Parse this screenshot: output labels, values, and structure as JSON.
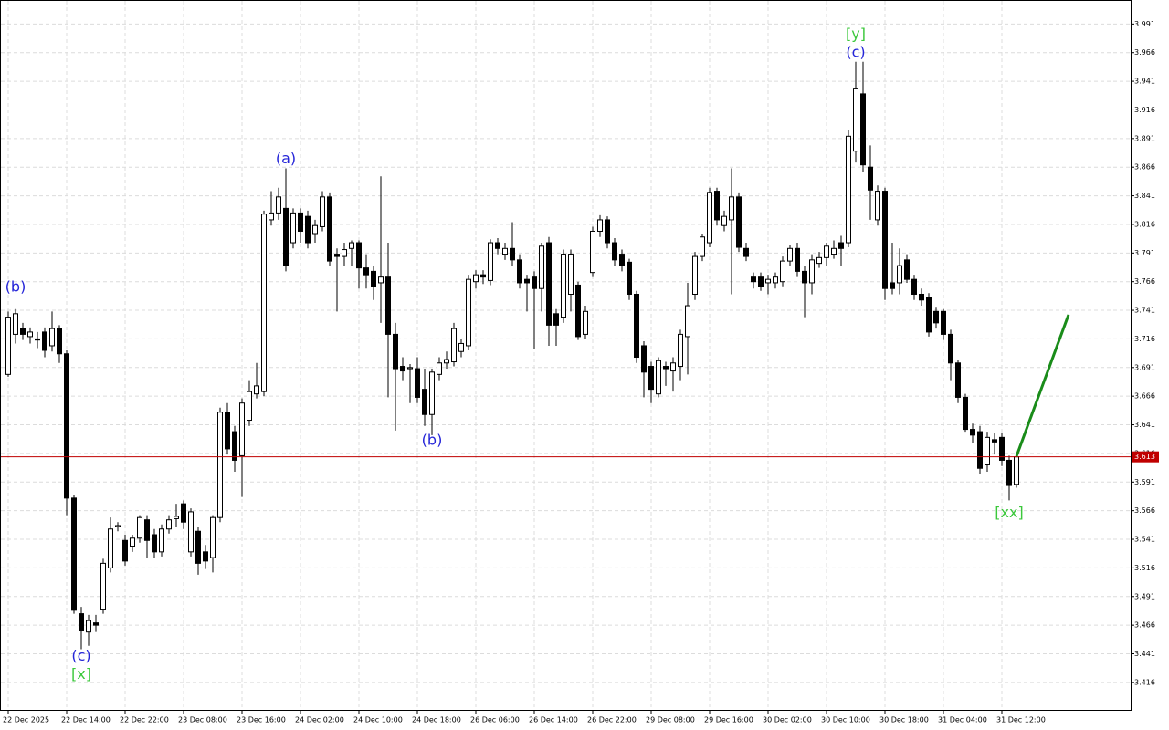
{
  "chart_data": {
    "type": "candlestick",
    "ylim": [
      3.392,
      4.012
    ],
    "yticks": [
      3.416,
      3.441,
      3.466,
      3.491,
      3.516,
      3.541,
      3.566,
      3.591,
      3.616,
      3.641,
      3.666,
      3.691,
      3.716,
      3.741,
      3.766,
      3.791,
      3.816,
      3.841,
      3.866,
      3.891,
      3.916,
      3.941,
      3.966,
      3.991
    ],
    "grid": true,
    "current_price": 3.613,
    "current_price_color": "#c00000",
    "categories": [
      "22 Dec 2025",
      null,
      null,
      null,
      null,
      null,
      null,
      null,
      "22 Dec 14:00",
      null,
      null,
      null,
      null,
      null,
      null,
      null,
      "22 Dec 22:00",
      null,
      null,
      null,
      null,
      null,
      null,
      null,
      "23 Dec 08:00",
      null,
      null,
      null,
      null,
      null,
      null,
      null,
      "23 Dec 16:00",
      null,
      null,
      null,
      null,
      null,
      null,
      null,
      "24 Dec 02:00",
      null,
      null,
      null,
      null,
      null,
      null,
      null,
      "24 Dec 10:00",
      null,
      null,
      null,
      null,
      null,
      null,
      null,
      "24 Dec 18:00",
      null,
      null,
      null,
      null,
      null,
      null,
      null,
      "26 Dec 06:00",
      null,
      null,
      null,
      null,
      null,
      null,
      null,
      "26 Dec 14:00",
      null,
      null,
      null,
      null,
      null,
      null,
      null,
      "26 Dec 22:00",
      null,
      null,
      null,
      null,
      null,
      null,
      null,
      "29 Dec 08:00",
      null,
      null,
      null,
      null,
      null,
      null,
      null,
      "29 Dec 16:00",
      null,
      null,
      null,
      null,
      null,
      null,
      null,
      "30 Dec 02:00",
      null,
      null,
      null,
      null,
      null,
      null,
      null,
      "30 Dec 10:00",
      null,
      null,
      null,
      null,
      null,
      null,
      null,
      "30 Dec 18:00",
      null,
      null,
      null,
      null,
      null,
      null,
      null,
      "31 Dec 04:00",
      null,
      null,
      null,
      null,
      null,
      null,
      null,
      "31 Dec 12:00",
      null,
      null
    ],
    "open": [
      3.685,
      3.72,
      3.725,
      3.718,
      3.716,
      3.722,
      3.71,
      3.725,
      3.703,
      3.577,
      3.476,
      3.46,
      3.468,
      3.48,
      3.516,
      3.552,
      3.54,
      3.535,
      3.542,
      3.558,
      3.545,
      3.53,
      3.55,
      3.559,
      3.572,
      3.53,
      3.548,
      3.53,
      3.525,
      3.56,
      3.652,
      3.635,
      3.614,
      3.645,
      3.668,
      3.67,
      3.82,
      3.826,
      3.83,
      3.8,
      3.826,
      3.823,
      3.808,
      3.814,
      3.84,
      3.79,
      3.788,
      3.795,
      3.8,
      3.778,
      3.775,
      3.765,
      3.77,
      3.72,
      3.692,
      3.69,
      3.69,
      3.672,
      3.65,
      3.685,
      3.695,
      3.696,
      3.705,
      3.71,
      3.766,
      3.772,
      3.767,
      3.8,
      3.79,
      3.795,
      3.785,
      3.768,
      3.77,
      3.76,
      3.8,
      3.738,
      3.735,
      3.755,
      3.763,
      3.72,
      3.774,
      3.81,
      3.82,
      3.8,
      3.79,
      3.783,
      3.755,
      3.71,
      3.692,
      3.668,
      3.692,
      3.688,
      3.692,
      3.718,
      3.755,
      3.788,
      3.8,
      3.845,
      3.815,
      3.82,
      3.84,
      3.795,
      3.77,
      3.77,
      3.765,
      3.765,
      3.766,
      3.784,
      3.795,
      3.775,
      3.765,
      3.782,
      3.787,
      3.79,
      3.8,
      3.8,
      3.88,
      3.93,
      3.866,
      3.82,
      3.845,
      3.765,
      3.765,
      3.785,
      3.768,
      3.755,
      3.752,
      3.74,
      3.74,
      3.72,
      3.695,
      3.665,
      3.637,
      3.635,
      3.606,
      3.628,
      3.63,
      3.61,
      3.589
    ],
    "high": [
      3.74,
      3.742,
      3.73,
      3.726,
      3.722,
      3.726,
      3.74,
      3.728,
      3.706,
      3.58,
      3.482,
      3.475,
      3.475,
      3.524,
      3.56,
      3.556,
      3.545,
      3.545,
      3.562,
      3.562,
      3.55,
      3.554,
      3.562,
      3.572,
      3.575,
      3.568,
      3.552,
      3.536,
      3.562,
      3.656,
      3.66,
      3.64,
      3.664,
      3.68,
      3.695,
      3.828,
      3.845,
      3.848,
      3.865,
      3.83,
      3.83,
      3.828,
      3.82,
      3.845,
      3.844,
      3.795,
      3.8,
      3.802,
      3.802,
      3.79,
      3.78,
      3.858,
      3.8,
      3.73,
      3.7,
      3.694,
      3.7,
      3.69,
      3.69,
      3.7,
      3.705,
      3.73,
      3.716,
      3.772,
      3.776,
      3.776,
      3.803,
      3.804,
      3.8,
      3.818,
      3.79,
      3.772,
      3.775,
      3.8,
      3.805,
      3.742,
      3.794,
      3.794,
      3.766,
      3.745,
      3.814,
      3.824,
      3.823,
      3.804,
      3.794,
      3.786,
      3.758,
      3.714,
      3.696,
      3.7,
      3.696,
      3.7,
      3.724,
      3.765,
      3.792,
      3.808,
      3.848,
      3.848,
      3.828,
      3.865,
      3.844,
      3.8,
      3.774,
      3.774,
      3.772,
      3.774,
      3.788,
      3.798,
      3.8,
      3.78,
      3.79,
      3.792,
      3.8,
      3.802,
      3.806,
      3.898,
      3.958,
      3.958,
      3.885,
      3.85,
      3.848,
      3.8,
      3.795,
      3.79,
      3.772,
      3.76,
      3.756,
      3.744,
      3.742,
      3.724,
      3.698,
      3.668,
      3.642,
      3.64,
      3.635,
      3.634,
      3.634,
      3.614,
      3.616
    ],
    "low": [
      3.683,
      3.712,
      3.715,
      3.712,
      3.708,
      3.7,
      3.705,
      3.695,
      3.562,
      3.476,
      3.445,
      3.448,
      3.46,
      3.476,
      3.512,
      3.548,
      3.518,
      3.53,
      3.538,
      3.525,
      3.525,
      3.526,
      3.546,
      3.552,
      3.55,
      3.526,
      3.51,
      3.515,
      3.512,
      3.556,
      3.615,
      3.6,
      3.578,
      3.64,
      3.664,
      3.666,
      3.815,
      3.82,
      3.775,
      3.795,
      3.8,
      3.795,
      3.8,
      3.81,
      3.78,
      3.74,
      3.78,
      3.78,
      3.76,
      3.76,
      3.75,
      3.73,
      3.665,
      3.636,
      3.68,
      3.66,
      3.66,
      3.64,
      3.632,
      3.68,
      3.69,
      3.692,
      3.7,
      3.706,
      3.76,
      3.764,
      3.763,
      3.79,
      3.785,
      3.78,
      3.76,
      3.74,
      3.707,
      3.74,
      3.71,
      3.71,
      3.73,
      3.74,
      3.715,
      3.716,
      3.77,
      3.805,
      3.795,
      3.78,
      3.775,
      3.75,
      3.695,
      3.665,
      3.66,
      3.665,
      3.675,
      3.67,
      3.68,
      3.685,
      3.75,
      3.784,
      3.796,
      3.815,
      3.81,
      3.755,
      3.792,
      3.784,
      3.76,
      3.758,
      3.755,
      3.76,
      3.762,
      3.78,
      3.77,
      3.735,
      3.755,
      3.778,
      3.78,
      3.786,
      3.78,
      3.796,
      3.87,
      3.862,
      3.82,
      3.815,
      3.75,
      3.755,
      3.755,
      3.765,
      3.75,
      3.745,
      3.718,
      3.725,
      3.715,
      3.68,
      3.66,
      3.635,
      3.625,
      3.598,
      3.6,
      3.615,
      3.605,
      3.575,
      3.586
    ],
    "close": [
      3.735,
      3.738,
      3.72,
      3.722,
      3.715,
      3.706,
      3.725,
      3.703,
      3.577,
      3.479,
      3.461,
      3.47,
      3.466,
      3.52,
      3.55,
      3.553,
      3.522,
      3.542,
      3.56,
      3.54,
      3.53,
      3.55,
      3.558,
      3.561,
      3.556,
      3.565,
      3.52,
      3.522,
      3.56,
      3.652,
      3.62,
      3.61,
      3.66,
      3.67,
      3.675,
      3.825,
      3.826,
      3.84,
      3.78,
      3.826,
      3.81,
      3.8,
      3.815,
      3.84,
      3.784,
      3.788,
      3.794,
      3.8,
      3.778,
      3.772,
      3.762,
      3.77,
      3.72,
      3.69,
      3.688,
      3.691,
      3.665,
      3.65,
      3.687,
      3.695,
      3.698,
      3.725,
      3.712,
      3.768,
      3.772,
      3.77,
      3.8,
      3.795,
      3.795,
      3.785,
      3.765,
      3.765,
      3.76,
      3.797,
      3.728,
      3.728,
      3.79,
      3.79,
      3.718,
      3.74,
      3.81,
      3.82,
      3.8,
      3.785,
      3.78,
      3.755,
      3.7,
      3.687,
      3.672,
      3.697,
      3.69,
      3.695,
      3.72,
      3.745,
      3.788,
      3.805,
      3.844,
      3.82,
      3.823,
      3.84,
      3.796,
      3.788,
      3.766,
      3.762,
      3.768,
      3.77,
      3.784,
      3.795,
      3.775,
      3.765,
      3.785,
      3.787,
      3.797,
      3.795,
      3.795,
      3.893,
      3.935,
      3.868,
      3.846,
      3.845,
      3.76,
      3.76,
      3.78,
      3.768,
      3.755,
      3.75,
      3.722,
      3.73,
      3.72,
      3.695,
      3.665,
      3.637,
      3.632,
      3.603,
      3.63,
      3.626,
      3.61,
      3.588,
      3.613
    ],
    "annotations": [
      {
        "text": "(b)",
        "color": "#2424d8"
      },
      {
        "text": "(c)",
        "color": "#2424d8"
      },
      {
        "text": "[x]",
        "color": "#3cc83c"
      },
      {
        "text": "(a)",
        "color": "#2424d8"
      },
      {
        "text": "(b)",
        "color": "#2424d8"
      },
      {
        "text": "[y]",
        "color": "#3cc83c"
      },
      {
        "text": "(c)",
        "color": "#2424d8"
      },
      {
        "text": "[xx]",
        "color": "#3cc83c"
      }
    ]
  }
}
